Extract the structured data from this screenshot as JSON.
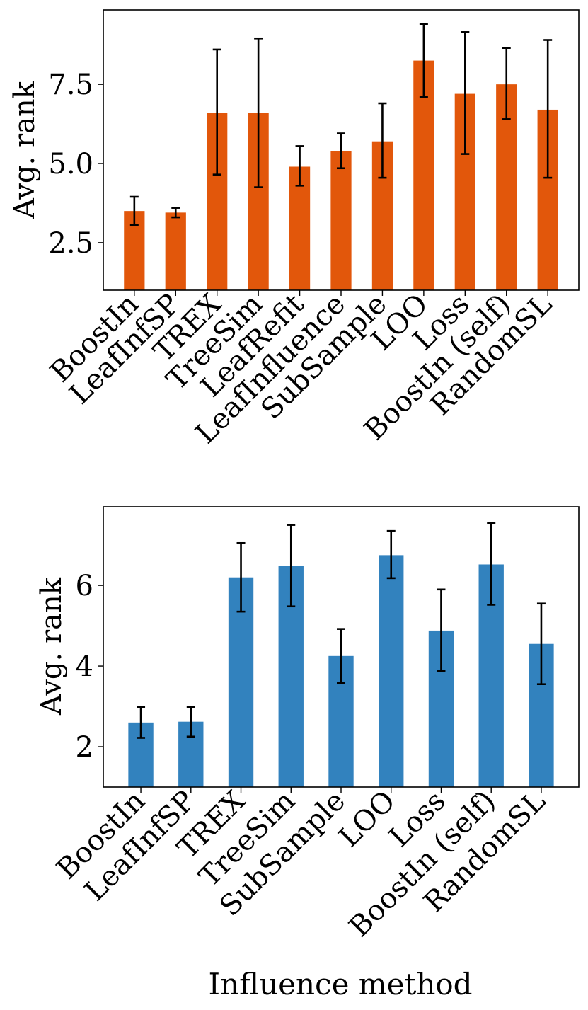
{
  "chart_data": [
    {
      "type": "bar",
      "color": "#e2570b",
      "categories": [
        "BoostIn",
        "LeafInfSP",
        "TREX",
        "TreeSim",
        "LeafRefit",
        "LeafInfluence",
        "SubSample",
        "LOO",
        "Loss",
        "BoostIn (self)",
        "RandomSL"
      ],
      "values": [
        3.5,
        3.45,
        6.6,
        6.6,
        4.9,
        5.4,
        5.7,
        8.25,
        7.2,
        7.5,
        6.7
      ],
      "error_low": [
        3.05,
        3.3,
        4.65,
        4.25,
        4.3,
        4.85,
        4.55,
        7.1,
        5.3,
        6.4,
        4.55
      ],
      "error_high": [
        3.95,
        3.6,
        8.6,
        8.95,
        5.55,
        5.95,
        6.9,
        9.4,
        9.15,
        8.65,
        8.9
      ],
      "ylabel": "Avg. rank",
      "xlabel": "",
      "ylim": [
        1.0,
        9.85
      ],
      "yticks": [
        2.5,
        5.0,
        7.5
      ],
      "ytick_labels": [
        "2.5",
        "5.0",
        "7.5"
      ]
    },
    {
      "type": "bar",
      "color": "#3282be",
      "categories": [
        "BoostIn",
        "LeafInfSP",
        "TREX",
        "TreeSim",
        "SubSample",
        "LOO",
        "Loss",
        "BoostIn (self)",
        "RandomSL"
      ],
      "values": [
        2.6,
        2.62,
        6.2,
        6.48,
        4.25,
        6.75,
        4.88,
        6.52,
        4.55
      ],
      "error_low": [
        2.22,
        2.25,
        5.35,
        5.48,
        3.58,
        6.18,
        3.88,
        5.52,
        3.55
      ],
      "error_high": [
        2.98,
        2.98,
        7.05,
        7.5,
        4.92,
        7.35,
        5.9,
        7.55,
        5.55
      ],
      "ylabel": "Avg. rank",
      "xlabel": "Influence method",
      "ylim": [
        1.0,
        7.95
      ],
      "yticks": [
        2,
        4,
        6
      ],
      "ytick_labels": [
        "2",
        "4",
        "6"
      ]
    }
  ]
}
